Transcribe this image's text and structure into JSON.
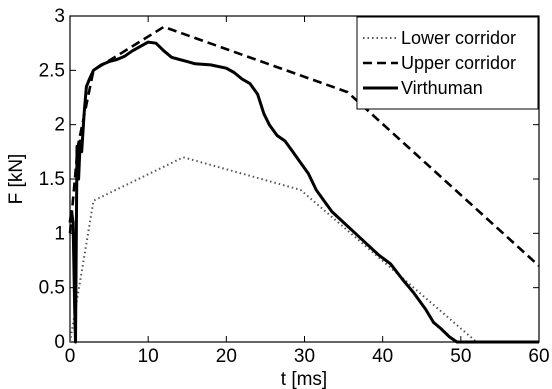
{
  "chart_data": {
    "type": "line",
    "title": "",
    "xlabel": "t [ms]",
    "ylabel": "F [kN]",
    "xlim": [
      0,
      60
    ],
    "ylim": [
      0,
      3
    ],
    "xticks": [
      0,
      10,
      20,
      30,
      40,
      50,
      60
    ],
    "yticks": [
      0,
      0.5,
      1,
      1.5,
      2,
      2.5,
      3
    ],
    "xtick_labels": [
      "0",
      "10",
      "20",
      "30",
      "40",
      "50",
      "60"
    ],
    "ytick_labels": [
      "0",
      "0.5",
      "1",
      "1.5",
      "2",
      "2.5",
      "3"
    ],
    "grid": false,
    "legend_position": "top-right",
    "series": [
      {
        "name": "Lower corridor",
        "style": "dotted",
        "color": "#555555",
        "points": [
          [
            0,
            0
          ],
          [
            3,
            1.3
          ],
          [
            14.5,
            1.7
          ],
          [
            29.5,
            1.4
          ],
          [
            52,
            0
          ]
        ]
      },
      {
        "name": "Upper corridor",
        "style": "dashed",
        "color": "#000000",
        "points": [
          [
            0,
            1.0
          ],
          [
            1,
            1.8
          ],
          [
            3,
            2.5
          ],
          [
            12,
            2.9
          ],
          [
            35.5,
            2.3
          ],
          [
            60,
            0.7
          ]
        ]
      },
      {
        "name": "Virthuman",
        "style": "solid",
        "color": "#000000",
        "points": [
          [
            0,
            1.1
          ],
          [
            0.2,
            1.2
          ],
          [
            0.4,
            1.1
          ],
          [
            0.6,
            0.3
          ],
          [
            0.7,
            0.0
          ],
          [
            0.9,
            1.8
          ],
          [
            1.1,
            1.5
          ],
          [
            1.3,
            1.85
          ],
          [
            1.5,
            1.75
          ],
          [
            1.8,
            2.1
          ],
          [
            2.1,
            2.35
          ],
          [
            2.5,
            2.42
          ],
          [
            3,
            2.5
          ],
          [
            4,
            2.55
          ],
          [
            5,
            2.58
          ],
          [
            6,
            2.6
          ],
          [
            7,
            2.63
          ],
          [
            8,
            2.68
          ],
          [
            9,
            2.72
          ],
          [
            10,
            2.76
          ],
          [
            11,
            2.75
          ],
          [
            12,
            2.68
          ],
          [
            13,
            2.62
          ],
          [
            14,
            2.6
          ],
          [
            15,
            2.58
          ],
          [
            16,
            2.56
          ],
          [
            18,
            2.55
          ],
          [
            20,
            2.52
          ],
          [
            21,
            2.48
          ],
          [
            22,
            2.42
          ],
          [
            23,
            2.38
          ],
          [
            24,
            2.28
          ],
          [
            24.8,
            2.1
          ],
          [
            25.5,
            2.0
          ],
          [
            26.5,
            1.9
          ],
          [
            27.5,
            1.85
          ],
          [
            28.5,
            1.75
          ],
          [
            29.5,
            1.65
          ],
          [
            30.5,
            1.55
          ],
          [
            31.5,
            1.4
          ],
          [
            32.5,
            1.3
          ],
          [
            33.5,
            1.2
          ],
          [
            35,
            1.1
          ],
          [
            36.5,
            1.0
          ],
          [
            38,
            0.9
          ],
          [
            39.5,
            0.8
          ],
          [
            41,
            0.72
          ],
          [
            42.5,
            0.58
          ],
          [
            44,
            0.45
          ],
          [
            45.5,
            0.3
          ],
          [
            46.5,
            0.18
          ],
          [
            47.5,
            0.12
          ],
          [
            48.5,
            0.05
          ],
          [
            49.5,
            0.0
          ],
          [
            60,
            0.0
          ]
        ]
      }
    ]
  }
}
